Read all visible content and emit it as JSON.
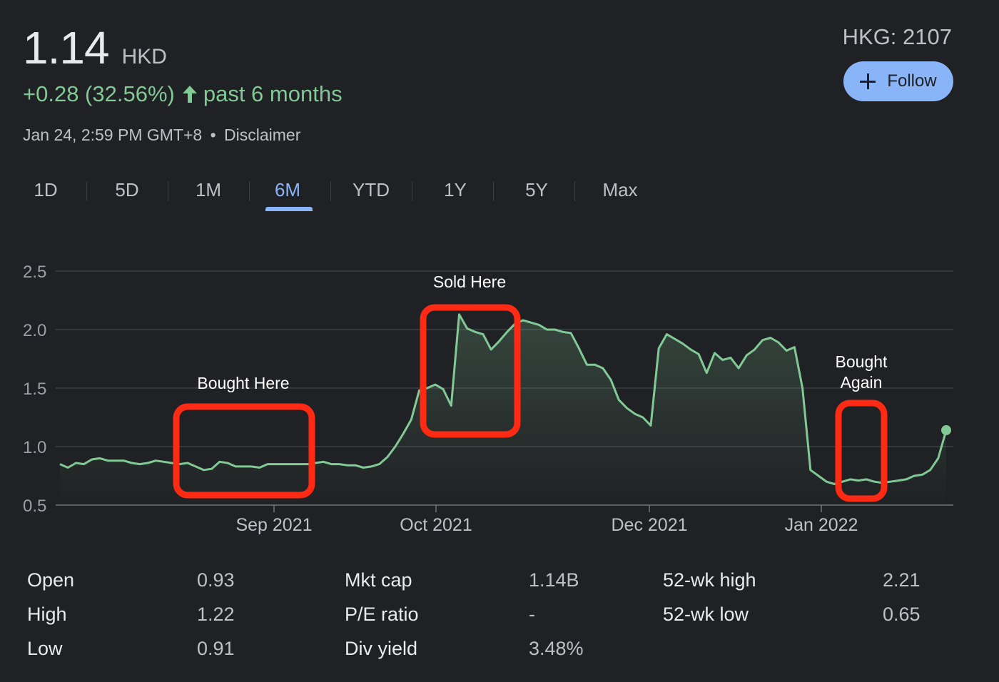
{
  "quote": {
    "price": "1.14",
    "currency": "HKD",
    "change": "+0.28 (32.56%)",
    "period": "past 6 months",
    "timestamp": "Jan 24, 2:59 PM GMT+8",
    "separator": "•",
    "disclaimer": "Disclaimer",
    "ticker": "HKG: 2107",
    "follow_label": "Follow"
  },
  "tabs": [
    "1D",
    "5D",
    "1M",
    "6M",
    "YTD",
    "1Y",
    "5Y",
    "Max"
  ],
  "active_tab": "6M",
  "colors": {
    "background": "#202124",
    "line": "#81c995",
    "accent": "#8ab4f8",
    "annotation_box": "#ff2a14"
  },
  "chart_data": {
    "type": "area",
    "ylim": [
      0.5,
      2.5
    ],
    "yticks": [
      "2.5",
      "2.0",
      "1.5",
      "1.0",
      "0.5"
    ],
    "xticks": [
      "Sep 2021",
      "Oct 2021",
      "Dec 2021",
      "Jan 2022"
    ],
    "series": [
      {
        "values": [
          0.85,
          0.82,
          0.86,
          0.85,
          0.89,
          0.9,
          0.88,
          0.88,
          0.88,
          0.86,
          0.85,
          0.86,
          0.88,
          0.87,
          0.86,
          0.85,
          0.86,
          0.83,
          0.8,
          0.81,
          0.87,
          0.86,
          0.83,
          0.83,
          0.83,
          0.82,
          0.85,
          0.85,
          0.85,
          0.85,
          0.85,
          0.85,
          0.86,
          0.87,
          0.85,
          0.85,
          0.84,
          0.84,
          0.82,
          0.83,
          0.85,
          0.91,
          1.0,
          1.11,
          1.23,
          1.48,
          1.5,
          1.53,
          1.49,
          1.35,
          2.13,
          2.01,
          1.98,
          1.96,
          1.83,
          1.9,
          1.98,
          2.05,
          2.08,
          2.06,
          2.04,
          2.0,
          2.0,
          1.98,
          1.97,
          1.84,
          1.7,
          1.7,
          1.67,
          1.57,
          1.4,
          1.33,
          1.28,
          1.25,
          1.18,
          1.84,
          1.96,
          1.92,
          1.88,
          1.83,
          1.79,
          1.63,
          1.8,
          1.74,
          1.76,
          1.67,
          1.78,
          1.83,
          1.91,
          1.93,
          1.89,
          1.82,
          1.85,
          1.5,
          0.8,
          0.75,
          0.7,
          0.68,
          0.7,
          0.72,
          0.71,
          0.72,
          0.7,
          0.69,
          0.7,
          0.71,
          0.72,
          0.75,
          0.76,
          0.8,
          0.9,
          1.14
        ]
      }
    ],
    "annotations": [
      "Bought Here",
      "Sold Here",
      "Bought Again"
    ]
  },
  "stats": {
    "col1": [
      {
        "label": "Open",
        "value": "0.93"
      },
      {
        "label": "High",
        "value": "1.22"
      },
      {
        "label": "Low",
        "value": "0.91"
      }
    ],
    "col2": [
      {
        "label": "Mkt cap",
        "value": "1.14B"
      },
      {
        "label": "P/E ratio",
        "value": "-"
      },
      {
        "label": "Div yield",
        "value": "3.48%"
      }
    ],
    "col3": [
      {
        "label": "52-wk high",
        "value": "2.21"
      },
      {
        "label": "52-wk low",
        "value": "0.65"
      }
    ]
  }
}
